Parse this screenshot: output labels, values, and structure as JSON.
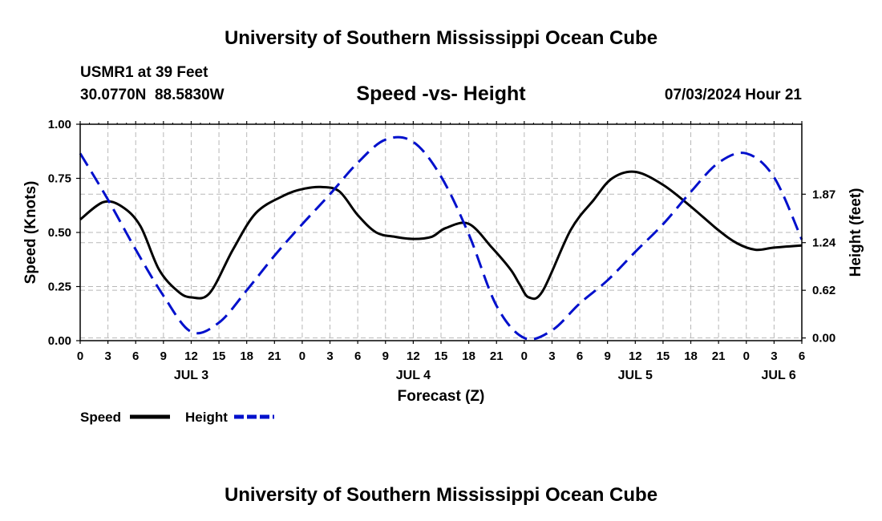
{
  "header": {
    "title": "University of Southern Mississippi Ocean Cube",
    "station": "USMR1 at 39 Feet",
    "coords": "30.0770N  88.5830W",
    "subtitle": "Speed -vs- Height",
    "datetime": "07/03/2024 Hour 21"
  },
  "footer": {
    "title": "University of Southern Mississippi Ocean Cube"
  },
  "chart_data": {
    "type": "line",
    "title": "Speed -vs- Height",
    "xlabel": "Forecast (Z)",
    "ylabel": "Speed (Knots)",
    "y2label": "Height (feet)",
    "xlim": [
      0,
      78
    ],
    "ylim": [
      0,
      1
    ],
    "y2lim": [
      -0.035,
      2.78
    ],
    "grid": true,
    "x_ticks": [
      0,
      3,
      6,
      9,
      12,
      15,
      18,
      21,
      24,
      27,
      30,
      33,
      36,
      39,
      42,
      45,
      48,
      51,
      54,
      57,
      60,
      63,
      66,
      69,
      72,
      75,
      78
    ],
    "x_tick_labels": [
      "0",
      "3",
      "6",
      "9",
      "12",
      "15",
      "18",
      "21",
      "0",
      "3",
      "6",
      "9",
      "12",
      "15",
      "18",
      "21",
      "0",
      "3",
      "6",
      "9",
      "12",
      "15",
      "18",
      "21",
      "0",
      "3",
      "6"
    ],
    "day_labels": [
      {
        "x": 12,
        "label": "JUL 3"
      },
      {
        "x": 36,
        "label": "JUL 4"
      },
      {
        "x": 60,
        "label": "JUL 5"
      },
      {
        "x": 75.5,
        "label": "JUL 6"
      }
    ],
    "y_ticks": [
      0,
      0.25,
      0.5,
      0.75,
      1.0
    ],
    "y_tick_labels": [
      "0.00",
      "0.25",
      "0.50",
      "0.75",
      "1.00"
    ],
    "y2_ticks": [
      0,
      0.62,
      1.24,
      1.87
    ],
    "y2_tick_labels": [
      "0.00",
      "0.62",
      "1.24",
      "1.87"
    ],
    "legend_position": "bottom-left",
    "series": [
      {
        "name": "Speed",
        "axis": "left",
        "color": "#000000",
        "dash": "solid",
        "x": [
          0,
          2.5,
          4.5,
          6.5,
          8.5,
          10.5,
          12,
          14,
          16.5,
          19,
          22,
          24,
          26,
          28,
          30,
          32,
          34,
          36,
          38,
          39.5,
          42,
          44.5,
          46.5,
          47.5,
          48.5,
          50,
          53,
          55.5,
          57.5,
          60,
          63,
          66,
          69,
          71,
          73,
          75,
          78
        ],
        "values": [
          0.56,
          0.64,
          0.62,
          0.53,
          0.33,
          0.23,
          0.2,
          0.22,
          0.42,
          0.59,
          0.67,
          0.7,
          0.71,
          0.69,
          0.58,
          0.5,
          0.48,
          0.47,
          0.48,
          0.52,
          0.54,
          0.43,
          0.33,
          0.26,
          0.2,
          0.23,
          0.51,
          0.65,
          0.75,
          0.78,
          0.72,
          0.62,
          0.51,
          0.45,
          0.42,
          0.43,
          0.44
        ]
      },
      {
        "name": "Height",
        "axis": "right",
        "color": "#0010cc",
        "dash": "dashed",
        "x": [
          0,
          3,
          6,
          9,
          12,
          15,
          18,
          21,
          24,
          27,
          30,
          33,
          36,
          39,
          42,
          45,
          48,
          51,
          54,
          57,
          60,
          63,
          66,
          69,
          72,
          75,
          78
        ],
        "values": [
          2.4,
          1.8,
          1.15,
          0.55,
          0.08,
          0.2,
          0.62,
          1.07,
          1.48,
          1.87,
          2.28,
          2.58,
          2.55,
          2.1,
          1.35,
          0.42,
          0.0,
          0.1,
          0.45,
          0.75,
          1.12,
          1.48,
          1.9,
          2.28,
          2.4,
          2.09,
          1.28
        ]
      }
    ]
  }
}
